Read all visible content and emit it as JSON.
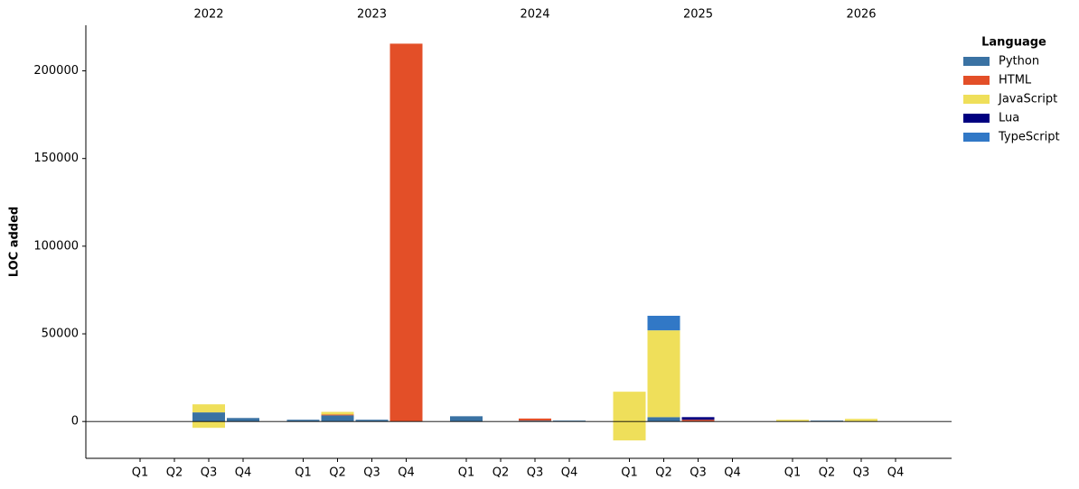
{
  "chart_data": {
    "type": "stacked_bar",
    "y_label": "LOC added",
    "legend_title": "Language",
    "groups": [
      "2022",
      "2023",
      "2024",
      "2025",
      "2026"
    ],
    "categories": [
      "Q1",
      "Q2",
      "Q3",
      "Q4",
      "Q1",
      "Q2",
      "Q3",
      "Q4",
      "Q1",
      "Q2",
      "Q3",
      "Q4",
      "Q1",
      "Q2",
      "Q3",
      "Q4",
      "Q1",
      "Q2",
      "Q3",
      "Q4"
    ],
    "series": [
      {
        "name": "Python",
        "color": "#3a72a3",
        "values": [
          0,
          0,
          5200,
          2000,
          1000,
          3500,
          1000,
          0,
          3000,
          0,
          500,
          500,
          0,
          2500,
          0,
          0,
          0,
          500,
          0,
          0
        ]
      },
      {
        "name": "HTML",
        "color": "#e34f28",
        "values": [
          0,
          0,
          0,
          0,
          0,
          500,
          0,
          215500,
          0,
          0,
          1200,
          0,
          0,
          0,
          1000,
          0,
          0,
          0,
          0,
          0
        ]
      },
      {
        "name": "JavaScript",
        "color": "#efdf5a",
        "values": [
          0,
          0,
          4600,
          0,
          0,
          1500,
          0,
          0,
          0,
          0,
          0,
          0,
          17000,
          49500,
          0,
          0,
          1000,
          0,
          1500,
          0
        ],
        "negative_values": [
          0,
          0,
          -3600,
          0,
          0,
          0,
          0,
          0,
          0,
          0,
          0,
          0,
          -10800,
          0,
          0,
          0,
          0,
          0,
          0,
          0
        ]
      },
      {
        "name": "Lua",
        "color": "#000080",
        "values": [
          0,
          0,
          0,
          0,
          0,
          0,
          0,
          0,
          0,
          0,
          0,
          0,
          0,
          0,
          1500,
          0,
          0,
          0,
          0,
          0
        ]
      },
      {
        "name": "TypeScript",
        "color": "#3178c6",
        "values": [
          0,
          0,
          0,
          0,
          0,
          0,
          0,
          0,
          0,
          0,
          0,
          0,
          0,
          8300,
          0,
          0,
          0,
          0,
          0,
          0
        ]
      }
    ],
    "ylim": [
      -21000,
      226000
    ],
    "yticks": [
      0,
      50000,
      100000,
      150000,
      200000
    ],
    "legend": "upper right"
  }
}
